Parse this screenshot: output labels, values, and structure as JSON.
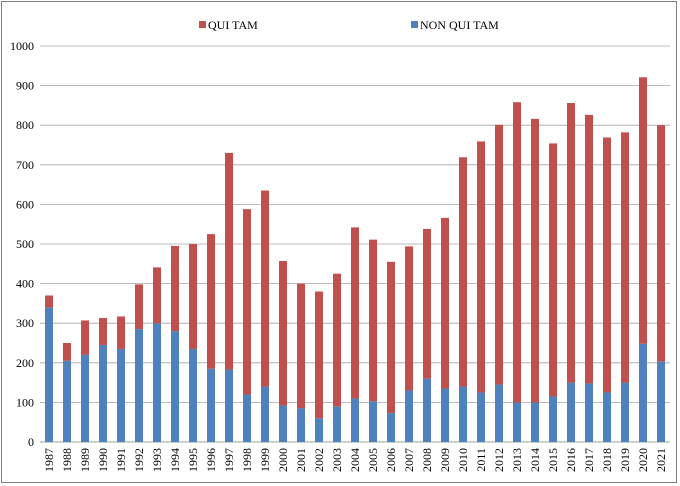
{
  "chart_data": {
    "type": "bar",
    "stacked": true,
    "categories": [
      "1987",
      "1988",
      "1989",
      "1990",
      "1991",
      "1992",
      "1993",
      "1994",
      "1995",
      "1996",
      "1997",
      "1998",
      "1999",
      "2000",
      "2001",
      "2002",
      "2003",
      "2004",
      "2005",
      "2006",
      "2007",
      "2008",
      "2009",
      "2010",
      "2011",
      "2012",
      "2013",
      "2014",
      "2015",
      "2016",
      "2017",
      "2018",
      "2019",
      "2020",
      "2021"
    ],
    "series": [
      {
        "name": "NON QUI TAM",
        "color": "#4f81bd",
        "values": [
          340,
          205,
          220,
          245,
          235,
          285,
          300,
          280,
          235,
          185,
          183,
          120,
          140,
          92,
          85,
          60,
          90,
          110,
          103,
          73,
          130,
          160,
          135,
          140,
          125,
          145,
          100,
          100,
          115,
          150,
          148,
          125,
          150,
          248,
          203
        ]
      },
      {
        "name": "QUI TAM",
        "color": "#c0504d",
        "values": [
          30,
          45,
          87,
          68,
          82,
          113,
          141,
          215,
          265,
          340,
          547,
          468,
          495,
          365,
          315,
          320,
          335,
          432,
          408,
          382,
          364,
          378,
          431,
          579,
          634,
          656,
          758,
          716,
          639,
          706,
          678,
          644,
          632,
          673,
          597
        ]
      }
    ],
    "ylim": [
      0,
      1000
    ],
    "yticks": [
      "0",
      "100",
      "200",
      "300",
      "400",
      "500",
      "600",
      "700",
      "800",
      "900",
      "1000"
    ],
    "grid": true,
    "legend_position": "top"
  }
}
